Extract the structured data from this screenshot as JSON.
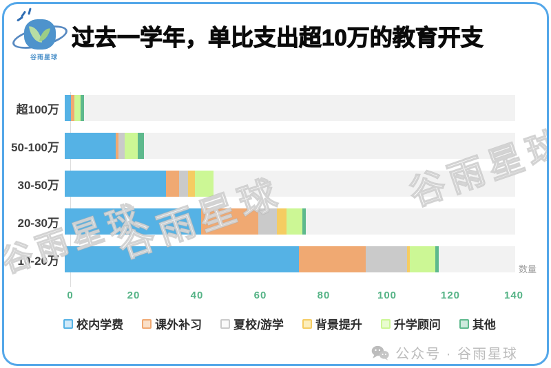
{
  "page": {
    "logo_text": "谷雨星球",
    "title": "过去一学年，单比支出超10万的教育开支",
    "watermark": "谷雨星球",
    "footer_text": "公众号 · 谷雨星球"
  },
  "chart_data": {
    "type": "bar",
    "orientation": "horizontal",
    "stacked": true,
    "title": "过去一学年，单比支出超10万的教育开支",
    "categories": [
      "超100万",
      "50-100万",
      "30-50万",
      "20-30万",
      "10-20万"
    ],
    "series": [
      {
        "name": "校内学费",
        "color": "#55b2e5",
        "legend_fill": "#cfe9f9",
        "values": [
          2,
          16,
          32,
          43,
          74
        ]
      },
      {
        "name": "课外补习",
        "color": "#f0a972",
        "legend_fill": "#fae0c8",
        "values": [
          1,
          1,
          4,
          18,
          21
        ]
      },
      {
        "name": "夏校/游学",
        "color": "#cacaca",
        "legend_fill": "#fafafa",
        "values": [
          0,
          2,
          3,
          6,
          13
        ]
      },
      {
        "name": "背景提升",
        "color": "#f5cc62",
        "legend_fill": "#fceebc",
        "values": [
          0,
          0,
          2,
          3,
          1
        ]
      },
      {
        "name": "升学顾问",
        "color": "#ccf795",
        "legend_fill": "#e9fcd0",
        "values": [
          2,
          4,
          6,
          5,
          8
        ]
      },
      {
        "name": "其他",
        "color": "#5eb98d",
        "legend_fill": "#cdeadd",
        "values": [
          1,
          2,
          0,
          1,
          1
        ]
      }
    ],
    "totals": [
      6,
      25,
      47,
      76,
      118
    ],
    "xlabel": "数量",
    "x_ticks": [
      0,
      20,
      40,
      60,
      80,
      100,
      120,
      140
    ],
    "xlim": [
      0,
      140
    ],
    "legend_position": "bottom",
    "grid": false,
    "track_color": "#f2f2f2",
    "tick_color": "#55b386"
  }
}
